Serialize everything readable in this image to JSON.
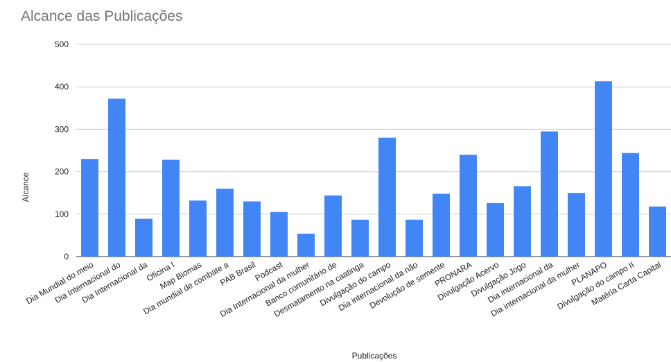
{
  "chart_data": {
    "type": "bar",
    "title": "Alcance das Publicações",
    "xlabel": "Publicações",
    "ylabel": "Alcance",
    "ylim": [
      0,
      500
    ],
    "yticks": [
      0,
      100,
      200,
      300,
      400,
      500
    ],
    "grid": true,
    "bar_color": "#4285f4",
    "categories": [
      "Dia Mundial do meio",
      "Dia Internacional do",
      "Dia Internacional da",
      "Oficina I",
      "Map Biomas",
      "Dia mundial de combate a",
      "PAB Brasil",
      "Podcast",
      "Dia Internacional da mulher",
      "Banco comunitário de",
      "Desmatamento na caatinga",
      "Divulgação do campo",
      "Dia internacional da não",
      "Devolução de semente",
      "PRONARA",
      "Divulgação Acervo",
      "Divulgação Jogo",
      "Dia internacional da",
      "Dia internacional da mulher",
      "PLANAPO",
      "Divulgação do campo II",
      "Matéria Carta Capital"
    ],
    "values": [
      230,
      372,
      89,
      228,
      132,
      160,
      130,
      105,
      54,
      144,
      87,
      280,
      87,
      148,
      240,
      126,
      166,
      295,
      150,
      413,
      244,
      118
    ]
  }
}
